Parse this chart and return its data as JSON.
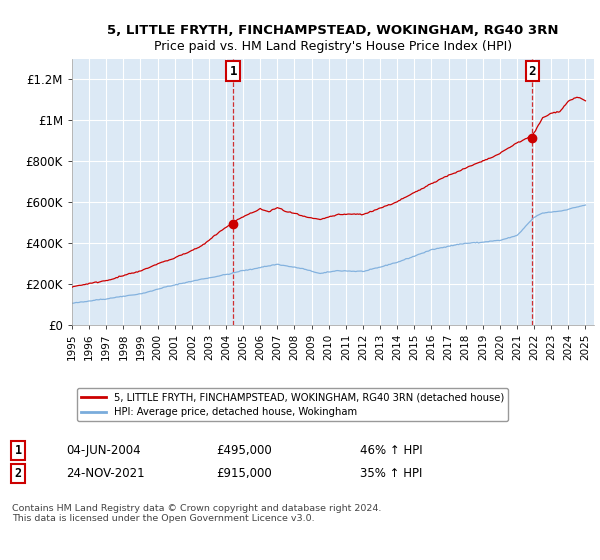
{
  "title": "5, LITTLE FRYTH, FINCHAMPSTEAD, WOKINGHAM, RG40 3RN",
  "subtitle": "Price paid vs. HM Land Registry's House Price Index (HPI)",
  "xlim": [
    1995.0,
    2025.5
  ],
  "ylim": [
    0,
    1300000
  ],
  "yticks": [
    0,
    200000,
    400000,
    600000,
    800000,
    1000000,
    1200000
  ],
  "ytick_labels": [
    "£0",
    "£200K",
    "£400K",
    "£600K",
    "£800K",
    "£1M",
    "£1.2M"
  ],
  "xtick_years": [
    1995,
    1996,
    1997,
    1998,
    1999,
    2000,
    2001,
    2002,
    2003,
    2004,
    2005,
    2006,
    2007,
    2008,
    2009,
    2010,
    2011,
    2012,
    2013,
    2014,
    2015,
    2016,
    2017,
    2018,
    2019,
    2020,
    2021,
    2022,
    2023,
    2024,
    2025
  ],
  "transaction1_x": 2004.42,
  "transaction1_y": 495000,
  "transaction1_label": "04-JUN-2004",
  "transaction1_price": "£495,000",
  "transaction1_hpi": "46% ↑ HPI",
  "transaction2_x": 2021.9,
  "transaction2_y": 915000,
  "transaction2_label": "24-NOV-2021",
  "transaction2_price": "£915,000",
  "transaction2_hpi": "35% ↑ HPI",
  "red_color": "#cc0000",
  "blue_color": "#7aacdc",
  "background_color": "#dce9f5",
  "plot_background": "#dce9f5",
  "grid_color": "#ffffff",
  "legend_label_red": "5, LITTLE FRYTH, FINCHAMPSTEAD, WOKINGHAM, RG40 3RN (detached house)",
  "legend_label_blue": "HPI: Average price, detached house, Wokingham",
  "footnote": "Contains HM Land Registry data © Crown copyright and database right 2024.\nThis data is licensed under the Open Government Licence v3.0."
}
